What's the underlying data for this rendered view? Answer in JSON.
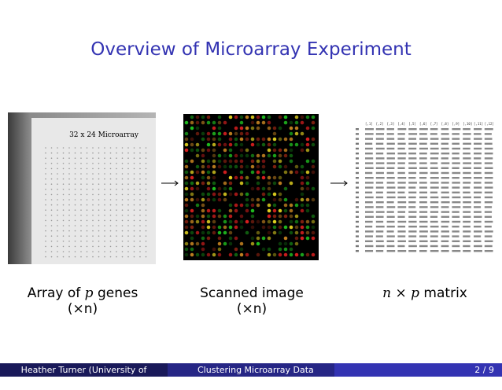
{
  "title": "Overview of Microarray Experiment",
  "photo_label": "32 x 24 Microarray",
  "matrix_header": [
    "[,1]",
    "[,2]",
    "[,3]",
    "[,4]",
    "[,5]",
    "[,6]",
    "[,7]",
    "[,8]",
    "[,9]",
    "[,10]",
    "[,11]",
    "[,12]"
  ],
  "captions": [
    {
      "before": "Array of ",
      "math": "p",
      "after": " genes",
      "line2": "(×n)"
    },
    {
      "before": "Scanned image",
      "math": "",
      "after": "",
      "line2": "(×n)"
    },
    {
      "before": "",
      "math": "n × p",
      "after": " matrix",
      "line2": ""
    }
  ],
  "footer": {
    "author": "Heather Turner  (University of Warwick)",
    "talk": "Clustering Microarray Data",
    "page": "2 / 9"
  }
}
